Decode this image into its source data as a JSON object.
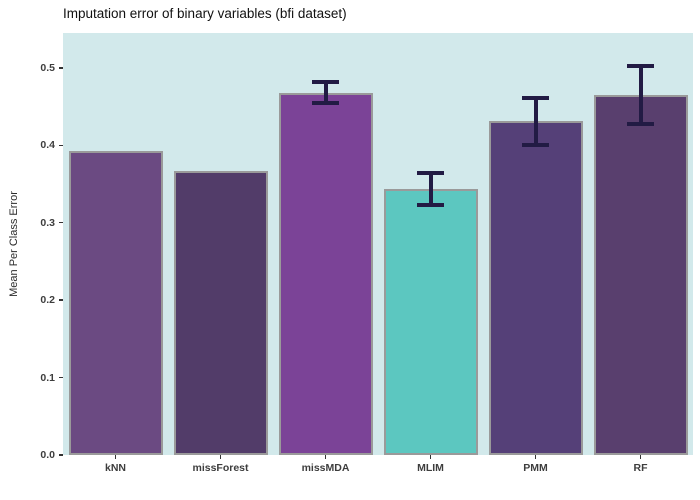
{
  "chart_data": {
    "type": "bar",
    "title": "Imputation error of binary variables (bfi dataset)",
    "xlabel": "",
    "ylabel": "Mean Per Class Error",
    "ylim": [
      0,
      0.545
    ],
    "yticks": [
      0.0,
      0.1,
      0.2,
      0.3,
      0.4,
      0.5
    ],
    "grid": false,
    "legend_position": "none",
    "plot_bg": "#d2e9eb",
    "bar_border_color": "#9a9a9a",
    "errorbar_color": "#221b44",
    "categories": [
      "kNN",
      "missForest",
      "missMDA",
      "MLIM",
      "PMM",
      "RF"
    ],
    "values": [
      0.392,
      0.367,
      0.468,
      0.343,
      0.431,
      0.465
    ],
    "error_bars": [
      null,
      null,
      {
        "low": 0.455,
        "high": 0.482
      },
      {
        "low": 0.323,
        "high": 0.364
      },
      {
        "low": 0.4,
        "high": 0.461
      },
      {
        "low": 0.428,
        "high": 0.502
      }
    ],
    "bar_colors": [
      "#6b4a82",
      "#523c69",
      "#7b4397",
      "#5cc7c0",
      "#554078",
      "#593f6e"
    ]
  }
}
